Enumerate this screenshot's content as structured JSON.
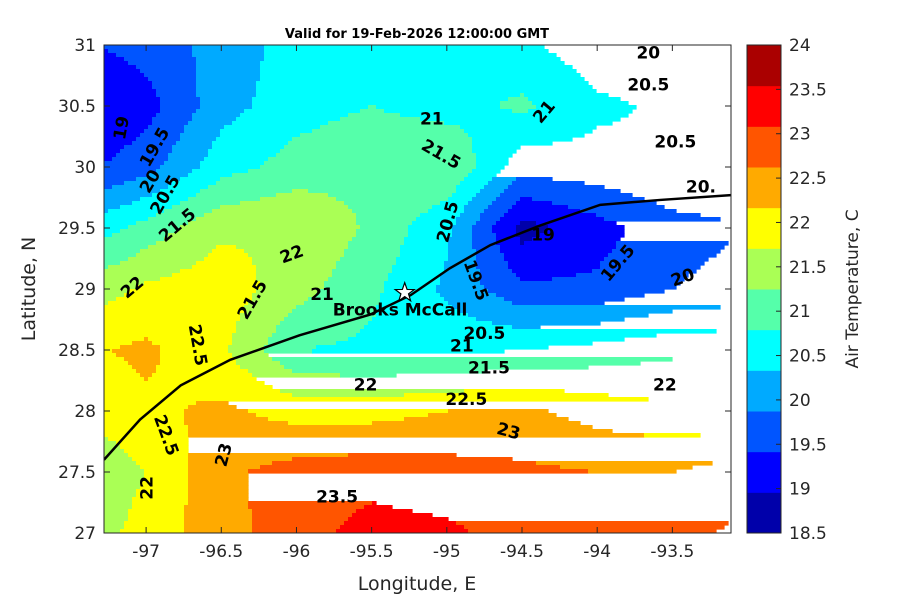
{
  "chart_data": {
    "type": "heatmap",
    "title": "Valid for 19-Feb-2026 12:00:00 GMT",
    "xlabel": "Longitude, E",
    "ylabel": "Latitude, N",
    "xlim": [
      -97.28,
      -93.11
    ],
    "ylim": [
      27,
      31
    ],
    "xticks": [
      "-97",
      "-96.5",
      "-96",
      "-95.5",
      "-95",
      "-94.5",
      "-94",
      "-93.5"
    ],
    "xtick_values": [
      -97,
      -96.5,
      -96,
      -95.5,
      -95,
      -94.5,
      -94,
      -93.5
    ],
    "yticks": [
      "27",
      "27.5",
      "28",
      "28.5",
      "29",
      "29.5",
      "30",
      "30.5",
      "31"
    ],
    "ytick_values": [
      27,
      27.5,
      28,
      28.5,
      29,
      29.5,
      30,
      30.5,
      31
    ],
    "colorbar": {
      "label": "Air Temperature, C",
      "ticks": [
        "18.5",
        "19",
        "19.5",
        "20",
        "20.5",
        "21",
        "21.5",
        "22",
        "22.5",
        "23",
        "23.5",
        "24"
      ],
      "levels": [
        18.5,
        19,
        19.5,
        20,
        20.5,
        21,
        21.5,
        22,
        22.5,
        23,
        23.5,
        24
      ],
      "colors": [
        "#0000aa",
        "#0000ff",
        "#0055ff",
        "#00aaff",
        "#00ffff",
        "#55ffaa",
        "#aaff55",
        "#ffff00",
        "#ffaa00",
        "#ff5500",
        "#ff0000",
        "#aa0000"
      ]
    },
    "grid": {
      "lons": [
        -97.5,
        -97,
        -96.5,
        -96,
        -95.5,
        -95,
        -94.5,
        -94,
        -93.5,
        -93
      ],
      "lats": [
        31,
        30.5,
        30,
        29.5,
        29,
        28.5,
        28,
        27.5,
        27
      ],
      "values": [
        [
          19.4,
          19.7,
          20.2,
          20.7,
          20.8,
          20.7,
          20.6,
          20.2,
          20.1,
          20.3
        ],
        [
          18.8,
          19.3,
          20.3,
          20.8,
          21.0,
          20.8,
          21.1,
          20.6,
          20.4,
          20.4
        ],
        [
          19.3,
          19.8,
          20.8,
          21.2,
          21.4,
          21.5,
          20.2,
          20.3,
          20.5,
          20.4
        ],
        [
          20.5,
          21.2,
          21.9,
          22.0,
          21.4,
          20.6,
          18.8,
          19.3,
          19.8,
          20.0
        ],
        [
          21.6,
          22.1,
          22.3,
          21.7,
          21.1,
          20.4,
          19.6,
          19.6,
          20.0,
          20.2
        ],
        [
          22.4,
          22.6,
          22.1,
          21.0,
          20.9,
          20.9,
          21.0,
          21.2,
          21.4,
          21.4
        ],
        [
          22.0,
          22.4,
          22.6,
          22.3,
          22.3,
          22.5,
          22.6,
          22.3,
          22.1,
          22.1
        ],
        [
          21.5,
          22.0,
          22.9,
          23.2,
          23.3,
          23.2,
          23.1,
          23.0,
          23.0,
          23.3
        ],
        [
          21.6,
          22.2,
          22.8,
          23.3,
          23.7,
          23.6,
          23.3,
          23.2,
          23.4,
          23.6
        ]
      ]
    },
    "contour_labels": [
      {
        "text": "20",
        "lon": -93.66,
        "lat": 30.93,
        "rot": 0
      },
      {
        "text": "20.5",
        "lon": -93.66,
        "lat": 30.67,
        "rot": 0
      },
      {
        "text": "21",
        "lon": -94.35,
        "lat": 30.45,
        "rot": -50
      },
      {
        "text": "20.5",
        "lon": -93.48,
        "lat": 30.2,
        "rot": 0
      },
      {
        "text": "20.",
        "lon": -93.31,
        "lat": 29.83,
        "rot": 0
      },
      {
        "text": "19",
        "lon": -97.16,
        "lat": 30.32,
        "rot": -80
      },
      {
        "text": "19.5",
        "lon": -96.94,
        "lat": 30.16,
        "rot": -60
      },
      {
        "text": "20",
        "lon": -96.97,
        "lat": 29.88,
        "rot": -60
      },
      {
        "text": "20.5",
        "lon": -96.87,
        "lat": 29.77,
        "rot": -60
      },
      {
        "text": "21.5",
        "lon": -96.79,
        "lat": 29.52,
        "rot": -40
      },
      {
        "text": "21",
        "lon": -95.1,
        "lat": 30.39,
        "rot": 0
      },
      {
        "text": "21.5",
        "lon": -95.04,
        "lat": 30.1,
        "rot": 30
      },
      {
        "text": "22",
        "lon": -96.03,
        "lat": 29.28,
        "rot": -20
      },
      {
        "text": "22",
        "lon": -97.09,
        "lat": 29.01,
        "rot": -40
      },
      {
        "text": "21",
        "lon": -95.83,
        "lat": 28.95,
        "rot": 0
      },
      {
        "text": "21.5",
        "lon": -96.29,
        "lat": 28.91,
        "rot": -60
      },
      {
        "text": "20.5",
        "lon": -94.99,
        "lat": 29.55,
        "rot": -75
      },
      {
        "text": "19",
        "lon": -94.36,
        "lat": 29.44,
        "rot": 0
      },
      {
        "text": "19.5",
        "lon": -93.86,
        "lat": 29.21,
        "rot": -50
      },
      {
        "text": "20",
        "lon": -93.43,
        "lat": 29.09,
        "rot": -20
      },
      {
        "text": "19.5",
        "lon": -94.81,
        "lat": 29.07,
        "rot": 70
      },
      {
        "text": "20.5",
        "lon": -94.75,
        "lat": 28.63,
        "rot": 0
      },
      {
        "text": "21",
        "lon": -94.9,
        "lat": 28.53,
        "rot": 0
      },
      {
        "text": "21.5",
        "lon": -94.72,
        "lat": 28.35,
        "rot": 0
      },
      {
        "text": "22",
        "lon": -95.54,
        "lat": 28.21,
        "rot": 0
      },
      {
        "text": "22",
        "lon": -93.55,
        "lat": 28.21,
        "rot": 0
      },
      {
        "text": "22.5",
        "lon": -94.87,
        "lat": 28.09,
        "rot": 0
      },
      {
        "text": "23",
        "lon": -94.59,
        "lat": 27.83,
        "rot": 15
      },
      {
        "text": "22.5",
        "lon": -96.87,
        "lat": 27.8,
        "rot": 70
      },
      {
        "text": "22",
        "lon": -96.99,
        "lat": 27.37,
        "rot": -90
      },
      {
        "text": "23",
        "lon": -96.48,
        "lat": 27.64,
        "rot": -75
      },
      {
        "text": "23.5",
        "lon": -95.73,
        "lat": 27.29,
        "rot": 0
      },
      {
        "text": "22.5",
        "lon": -96.66,
        "lat": 28.54,
        "rot": 80
      }
    ],
    "coastline": [
      [
        -97.28,
        27.6
      ],
      [
        -97.04,
        27.93
      ],
      [
        -96.77,
        28.21
      ],
      [
        -96.44,
        28.42
      ],
      [
        -95.98,
        28.62
      ],
      [
        -95.51,
        28.79
      ],
      [
        -95.24,
        28.95
      ],
      [
        -94.98,
        29.17
      ],
      [
        -94.71,
        29.36
      ],
      [
        -94.38,
        29.52
      ],
      [
        -93.98,
        29.69
      ],
      [
        -93.58,
        29.73
      ],
      [
        -93.11,
        29.77
      ]
    ],
    "station": {
      "name": "Brooks McCall",
      "lon": -95.28,
      "lat": 28.97
    }
  }
}
